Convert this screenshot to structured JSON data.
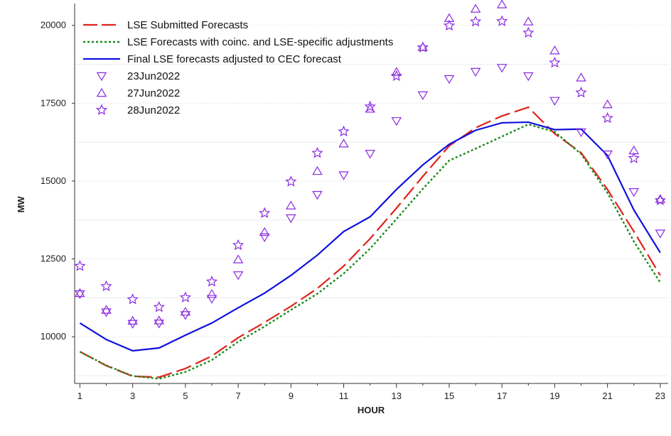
{
  "chart_data": {
    "type": "line",
    "title": "",
    "xlabel": "HOUR",
    "ylabel": "MW",
    "xlim": [
      0.8,
      23.3
    ],
    "ylim": [
      8500,
      20700
    ],
    "x_ticks": [
      1,
      3,
      5,
      7,
      9,
      11,
      13,
      15,
      17,
      19,
      21,
      23
    ],
    "y_ticks": [
      10000,
      12500,
      15000,
      17500,
      20000
    ],
    "grid": true,
    "legend_position": "top-left",
    "x": [
      1,
      2,
      3,
      4,
      5,
      6,
      7,
      8,
      9,
      10,
      11,
      12,
      13,
      14,
      15,
      16,
      17,
      18,
      19,
      20,
      21,
      22,
      23
    ],
    "series": [
      {
        "name": "LSE Submitted Forecasts",
        "style": "long-dash",
        "color": "#e0231b",
        "values": [
          9520,
          9070,
          8730,
          8700,
          8980,
          9380,
          9970,
          10460,
          10980,
          11550,
          12270,
          13150,
          14130,
          15150,
          16130,
          16710,
          17090,
          17370,
          16520,
          15910,
          14730,
          13380,
          11970
        ]
      },
      {
        "name": "LSE Forecasts with coinc. and LSE-specific adjustments",
        "style": "dotted",
        "color": "#1a8a1a",
        "values": [
          9520,
          9080,
          8740,
          8650,
          8870,
          9250,
          9840,
          10330,
          10860,
          11380,
          12030,
          12830,
          13780,
          14750,
          15660,
          16040,
          16430,
          16820,
          16580,
          15870,
          14620,
          13060,
          11740
        ]
      },
      {
        "name": "Final LSE forecasts adjusted to CEC forecast",
        "style": "solid",
        "color": "#1010e0",
        "values": [
          10440,
          9910,
          9550,
          9640,
          10050,
          10440,
          10930,
          11400,
          11970,
          12620,
          13380,
          13850,
          14730,
          15520,
          16180,
          16630,
          16870,
          16890,
          16650,
          16670,
          15820,
          14070,
          12700
        ]
      },
      {
        "name": "23Jun2022",
        "marker": "triangle-down",
        "color": "#8a2be2",
        "values": [
          11370,
          10790,
          10420,
          10430,
          10700,
          11220,
          11980,
          13200,
          13810,
          14560,
          15190,
          15880,
          16930,
          17760,
          18280,
          18510,
          18640,
          18370,
          17580,
          16570,
          15860,
          14650,
          13320
        ]
      },
      {
        "name": "27Jun2022",
        "marker": "triangle-up",
        "color": "#8a2be2",
        "values": [
          11400,
          10860,
          10510,
          10520,
          10800,
          11370,
          12480,
          13360,
          14210,
          15320,
          16200,
          17320,
          18500,
          19300,
          20230,
          20530,
          20670,
          20120,
          19190,
          18320,
          17460,
          15980,
          14420
        ]
      },
      {
        "name": "28Jun2022",
        "marker": "star",
        "color": "#8a2be2",
        "values": [
          12270,
          11620,
          11200,
          10950,
          11260,
          11770,
          12940,
          13970,
          14980,
          15900,
          16590,
          17390,
          18370,
          19290,
          19990,
          20120,
          20130,
          19760,
          18800,
          17840,
          17020,
          15730,
          14380
        ]
      }
    ]
  }
}
